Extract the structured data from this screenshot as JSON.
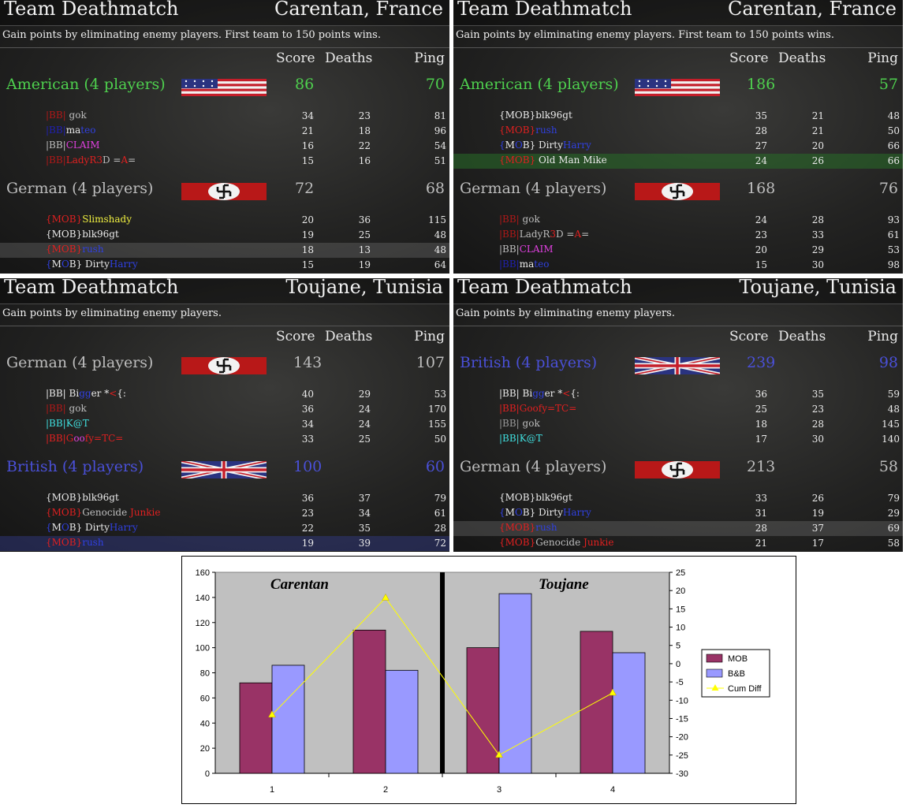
{
  "panels": [
    {
      "title": "Team Deathmatch",
      "map": "Carentan, France",
      "description": "Gain points by eliminating enemy players. First team to 150 points wins.",
      "col_score": "Score",
      "col_deaths": "Deaths",
      "col_ping": "Ping",
      "teams": [
        {
          "name": "American (4 players)",
          "color": "green",
          "flag": "usa",
          "score": "86",
          "ping": "70",
          "players": [
            {
              "name": [
                [
                  "|BB| ",
                  "dred"
                ],
                [
                  "gok",
                  "gray"
                ]
              ],
              "score": "34",
              "deaths": "23",
              "ping": "81"
            },
            {
              "name": [
                [
                  "|BB|",
                  "dblue"
                ],
                [
                  "ma",
                  "white"
                ],
                [
                  "teo",
                  "blue"
                ]
              ],
              "score": "21",
              "deaths": "18",
              "ping": "96"
            },
            {
              "name": [
                [
                  "|BB|",
                  "gray"
                ],
                [
                  "CLAIM",
                  "magenta"
                ]
              ],
              "score": "16",
              "deaths": "22",
              "ping": "54"
            },
            {
              "name": [
                [
                  "|BB|",
                  "dred"
                ],
                [
                  "LadyR",
                  "red"
                ],
                [
                  "3",
                  "red"
                ],
                [
                  "D =",
                  "gray"
                ],
                [
                  "A",
                  "red"
                ],
                [
                  "=",
                  "gray"
                ]
              ],
              "score": "15",
              "deaths": "16",
              "ping": "51"
            }
          ]
        },
        {
          "name": "German (4 players)",
          "color": "gray",
          "flag": "german",
          "score": "72",
          "ping": "68",
          "players": [
            {
              "name": [
                [
                  "{MOB}",
                  "red"
                ],
                [
                  "Slimshady",
                  "yellow"
                ]
              ],
              "score": "20",
              "deaths": "36",
              "ping": "115"
            },
            {
              "name": [
                [
                  "{MOB}blk96gt",
                  "white"
                ]
              ],
              "score": "19",
              "deaths": "25",
              "ping": "48"
            },
            {
              "name": [
                [
                  "{MOB}",
                  "red"
                ],
                [
                  "rush",
                  "blue"
                ]
              ],
              "score": "18",
              "deaths": "13",
              "ping": "48",
              "hl": "gray"
            },
            {
              "name": [
                [
                  "{",
                  "blue"
                ],
                [
                  "M",
                  "white"
                ],
                [
                  "O",
                  "blue"
                ],
                [
                  "B} Dirty",
                  "white"
                ],
                [
                  "Harry",
                  "blue"
                ]
              ],
              "score": "15",
              "deaths": "19",
              "ping": "64"
            }
          ]
        }
      ]
    },
    {
      "title": "Team Deathmatch",
      "map": "Carentan, France",
      "description": "Gain points by eliminating enemy players. First team to 150 points wins.",
      "col_score": "Score",
      "col_deaths": "Deaths",
      "col_ping": "Ping",
      "teams": [
        {
          "name": "American (4 players)",
          "color": "green",
          "flag": "usa",
          "score": "186",
          "ping": "57",
          "players": [
            {
              "name": [
                [
                  "{MOB}blk96gt",
                  "white"
                ]
              ],
              "score": "35",
              "deaths": "21",
              "ping": "48"
            },
            {
              "name": [
                [
                  "{MOB}",
                  "red"
                ],
                [
                  "rush",
                  "blue"
                ]
              ],
              "score": "28",
              "deaths": "21",
              "ping": "50"
            },
            {
              "name": [
                [
                  "{",
                  "blue"
                ],
                [
                  "M",
                  "white"
                ],
                [
                  "O",
                  "blue"
                ],
                [
                  "B} Dirty",
                  "white"
                ],
                [
                  "Harry",
                  "blue"
                ]
              ],
              "score": "27",
              "deaths": "20",
              "ping": "66"
            },
            {
              "name": [
                [
                  "{MOB}",
                  "red"
                ],
                [
                  " Old Man Mike",
                  "white"
                ]
              ],
              "score": "24",
              "deaths": "26",
              "ping": "66",
              "hl": "green"
            }
          ]
        },
        {
          "name": "German (4 players)",
          "color": "gray",
          "flag": "german",
          "score": "168",
          "ping": "76",
          "players": [
            {
              "name": [
                [
                  "|BB| ",
                  "dred"
                ],
                [
                  "gok",
                  "gray"
                ]
              ],
              "score": "24",
              "deaths": "28",
              "ping": "93"
            },
            {
              "name": [
                [
                  "|BB|",
                  "dred"
                ],
                [
                  "LadyR",
                  "gray"
                ],
                [
                  "3",
                  "red"
                ],
                [
                  "D =",
                  "gray"
                ],
                [
                  "A",
                  "red"
                ],
                [
                  "=",
                  "gray"
                ]
              ],
              "score": "23",
              "deaths": "33",
              "ping": "61"
            },
            {
              "name": [
                [
                  "|BB|",
                  "gray"
                ],
                [
                  "CLAIM",
                  "magenta"
                ]
              ],
              "score": "20",
              "deaths": "29",
              "ping": "53"
            },
            {
              "name": [
                [
                  "|BB|",
                  "dblue"
                ],
                [
                  "ma",
                  "white"
                ],
                [
                  "teo",
                  "blue"
                ]
              ],
              "score": "15",
              "deaths": "30",
              "ping": "98"
            }
          ]
        }
      ]
    },
    {
      "title": "Team Deathmatch",
      "map": "Toujane, Tunisia",
      "description": "Gain points by eliminating enemy players.",
      "col_score": "Score",
      "col_deaths": "Deaths",
      "col_ping": "Ping",
      "teams": [
        {
          "name": "German (4 players)",
          "color": "gray",
          "flag": "german",
          "score": "143",
          "ping": "107",
          "players": [
            {
              "name": [
                [
                  "|BB| Bi",
                  "white"
                ],
                [
                  "gg",
                  "blue"
                ],
                [
                  "er *",
                  "white"
                ],
                [
                  "<",
                  "red"
                ],
                [
                  "{:",
                  "white"
                ]
              ],
              "score": "40",
              "deaths": "29",
              "ping": "53"
            },
            {
              "name": [
                [
                  "|BB| ",
                  "dred"
                ],
                [
                  "gok",
                  "gray"
                ]
              ],
              "score": "36",
              "deaths": "24",
              "ping": "170"
            },
            {
              "name": [
                [
                  "|BB|",
                  "cyan"
                ],
                [
                  "K@T",
                  "cyan"
                ]
              ],
              "score": "34",
              "deaths": "24",
              "ping": "155"
            },
            {
              "name": [
                [
                  "|BB|",
                  "red"
                ],
                [
                  "G",
                  "red"
                ],
                [
                  "oo",
                  "magenta"
                ],
                [
                  "fy",
                  "red"
                ],
                [
                  "=TC=",
                  "red"
                ]
              ],
              "score": "33",
              "deaths": "25",
              "ping": "50"
            }
          ]
        },
        {
          "name": "British (4 players)",
          "color": "britblue",
          "flag": "uk",
          "score": "100",
          "ping": "60",
          "players": [
            {
              "name": [
                [
                  "{MOB}blk96gt",
                  "white"
                ]
              ],
              "score": "36",
              "deaths": "37",
              "ping": "79"
            },
            {
              "name": [
                [
                  "{MOB}",
                  "red"
                ],
                [
                  "Genocide ",
                  "gray"
                ],
                [
                  "Junkie",
                  "red"
                ]
              ],
              "score": "23",
              "deaths": "34",
              "ping": "61"
            },
            {
              "name": [
                [
                  "{",
                  "blue"
                ],
                [
                  "M",
                  "white"
                ],
                [
                  "O",
                  "blue"
                ],
                [
                  "B} Dirty",
                  "white"
                ],
                [
                  "Harry",
                  "blue"
                ]
              ],
              "score": "22",
              "deaths": "35",
              "ping": "28"
            },
            {
              "name": [
                [
                  "{MOB}",
                  "red"
                ],
                [
                  "rush",
                  "blue"
                ]
              ],
              "score": "19",
              "deaths": "39",
              "ping": "72",
              "hl": "blue"
            }
          ]
        }
      ]
    },
    {
      "title": "Team Deathmatch",
      "map": "Toujane, Tunisia",
      "description": "Gain points by eliminating enemy players.",
      "col_score": "Score",
      "col_deaths": "Deaths",
      "col_ping": "Ping",
      "teams": [
        {
          "name": "British (4 players)",
          "color": "britblue",
          "flag": "uk",
          "score": "239",
          "ping": "98",
          "players": [
            {
              "name": [
                [
                  "|BB| Bi",
                  "white"
                ],
                [
                  "gg",
                  "blue"
                ],
                [
                  "er *",
                  "white"
                ],
                [
                  "<",
                  "red"
                ],
                [
                  "{:",
                  "white"
                ]
              ],
              "score": "36",
              "deaths": "35",
              "ping": "59"
            },
            {
              "name": [
                [
                  "|BB|",
                  "red"
                ],
                [
                  "Goofy",
                  "red"
                ],
                [
                  "=TC=",
                  "red"
                ]
              ],
              "score": "25",
              "deaths": "23",
              "ping": "48"
            },
            {
              "name": [
                [
                  "|BB| ",
                  "dgray"
                ],
                [
                  "gok",
                  "gray"
                ]
              ],
              "score": "18",
              "deaths": "28",
              "ping": "145"
            },
            {
              "name": [
                [
                  "|BB|",
                  "cyan"
                ],
                [
                  "K@T",
                  "cyan"
                ]
              ],
              "score": "17",
              "deaths": "30",
              "ping": "140"
            }
          ]
        },
        {
          "name": "German (4 players)",
          "color": "gray",
          "flag": "german",
          "score": "213",
          "ping": "58",
          "players": [
            {
              "name": [
                [
                  "{MOB}blk96gt",
                  "white"
                ]
              ],
              "score": "33",
              "deaths": "26",
              "ping": "79"
            },
            {
              "name": [
                [
                  "{",
                  "blue"
                ],
                [
                  "M",
                  "white"
                ],
                [
                  "O",
                  "blue"
                ],
                [
                  "B} Dirty",
                  "white"
                ],
                [
                  "Harry",
                  "blue"
                ]
              ],
              "score": "31",
              "deaths": "19",
              "ping": "29"
            },
            {
              "name": [
                [
                  "{MOB}",
                  "red"
                ],
                [
                  "rush",
                  "blue"
                ]
              ],
              "score": "28",
              "deaths": "37",
              "ping": "69",
              "hl": "gray"
            },
            {
              "name": [
                [
                  "{MOB}",
                  "red"
                ],
                [
                  "Genocide ",
                  "gray"
                ],
                [
                  "Junkie",
                  "red"
                ]
              ],
              "score": "21",
              "deaths": "17",
              "ping": "58"
            }
          ]
        }
      ]
    }
  ],
  "chart_data": {
    "type": "bar",
    "categories": [
      "1",
      "2",
      "3",
      "4"
    ],
    "series": [
      {
        "name": "MOB",
        "values": [
          72,
          114,
          100,
          113
        ],
        "color": "#993366",
        "axis": "left"
      },
      {
        "name": "B&B",
        "values": [
          86,
          82,
          143,
          96
        ],
        "color": "#9999ff",
        "axis": "left"
      },
      {
        "name": "Cum Diff",
        "type": "line",
        "values": [
          -14,
          18,
          -25,
          -8
        ],
        "color": "#ffff00",
        "marker": "triangle",
        "axis": "right"
      }
    ],
    "ylim": [
      0,
      160
    ],
    "y2lim": [
      -30,
      25
    ],
    "yticks": [
      "0",
      "20",
      "40",
      "60",
      "80",
      "100",
      "120",
      "140",
      "160"
    ],
    "y2ticks": [
      "-30",
      "-25",
      "-20",
      "-15",
      "-10",
      "-5",
      "0",
      "5",
      "10",
      "15",
      "20",
      "25"
    ],
    "annotations": [
      "Carentan",
      "Toujane"
    ],
    "plot_background": "#c0c0c0",
    "legend_position": "right"
  },
  "colors": {
    "green": "#4ed04e",
    "britblue": "#4a50d8",
    "gray": "#bdbdbd",
    "white": "#eaeaea",
    "red": "#e02020",
    "blue": "#3040e0",
    "magenta": "#e040e0",
    "cyan": "#40e0e0",
    "yellow": "#f0f040",
    "dgray": "#9a9a9a",
    "dblue": "#2020b0",
    "dred": "#b01818"
  }
}
